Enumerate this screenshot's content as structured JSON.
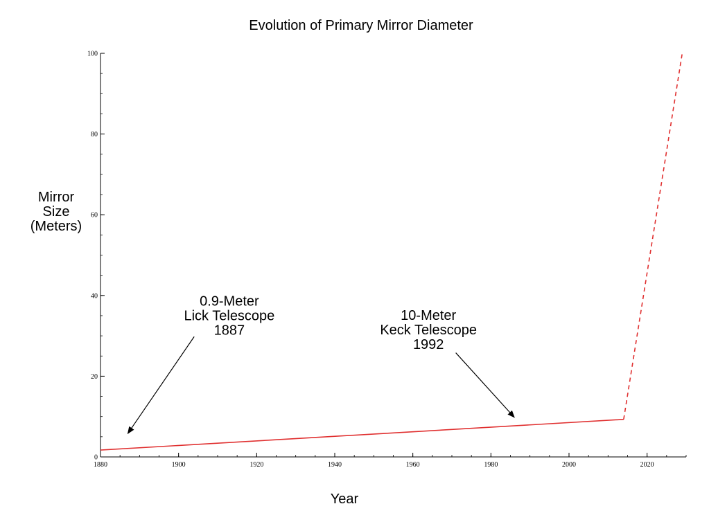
{
  "chart_data": {
    "type": "line",
    "title": "Evolution of Primary Mirror Diameter",
    "xlabel": "Year",
    "ylabel_lines": [
      "Mirror",
      "Size",
      "(Meters)"
    ],
    "xlim": [
      1880,
      2030
    ],
    "ylim": [
      0,
      100
    ],
    "x_major_ticks": [
      1880,
      1900,
      1920,
      1940,
      1960,
      1980,
      2000,
      2020
    ],
    "x_tick_labels": [
      "1880",
      "1900",
      "1920",
      "1940",
      "1960",
      "1980",
      "2000",
      "2020"
    ],
    "x_minor_step": 5,
    "y_major_ticks": [
      0,
      20,
      40,
      60,
      80,
      100
    ],
    "y_tick_labels": [
      "0",
      "20",
      "40",
      "60",
      "80",
      "100"
    ],
    "y_minor_step": 5,
    "grid": false,
    "series": [
      {
        "style": "solid",
        "color": "#e03030",
        "points": [
          [
            1880,
            1.7
          ],
          [
            2014,
            9.3
          ]
        ]
      },
      {
        "style": "dashed",
        "color": "#e03030",
        "points": [
          [
            2014,
            9.3
          ],
          [
            2029,
            100
          ]
        ]
      }
    ],
    "annotations": [
      {
        "lines": [
          "0.9-Meter",
          "Lick Telescope",
          "1887"
        ],
        "text_anchor_xy": [
          1913,
          37.5
        ],
        "arrow_from": [
          1904,
          29.8
        ],
        "arrow_to": [
          1887,
          5.8
        ]
      },
      {
        "lines": [
          "10-Meter",
          "Keck Telescope",
          "1992"
        ],
        "text_anchor_xy": [
          1964,
          34.0
        ],
        "arrow_from": [
          1971,
          25.8
        ],
        "arrow_to": [
          1986,
          9.8
        ]
      }
    ]
  }
}
